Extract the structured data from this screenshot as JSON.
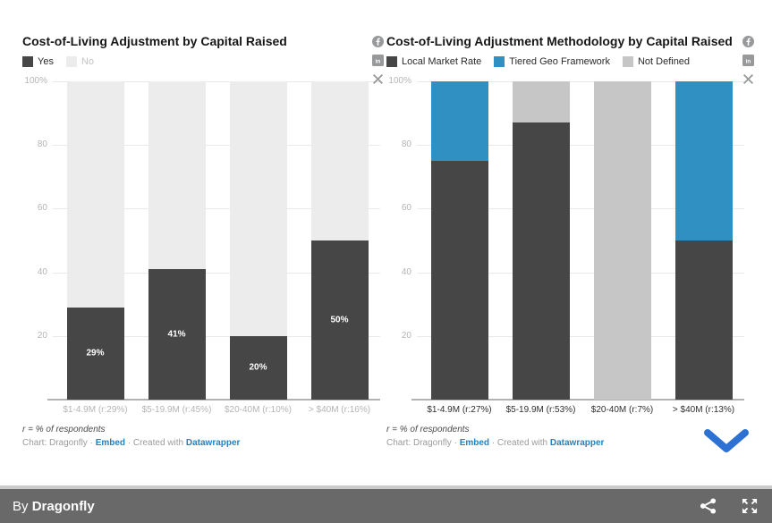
{
  "colors": {
    "bar_dark": "#464646",
    "no_fill": "#ececec",
    "accent_blue": "#3190c2",
    "not_defined_gray": "#c6c6c6",
    "link_blue": "#1f83c4",
    "chevron_blue": "#2d72d3",
    "footer_bg": "#696969",
    "footer_border": "#cbcbcb",
    "icon_gray": "#97999b"
  },
  "icons": {
    "social": [
      "facebook-icon",
      "linkedin-icon",
      "x-icon"
    ],
    "footer": [
      "share-icon",
      "fullscreen-icon"
    ],
    "scroll": "chevron-down-icon"
  },
  "footer": {
    "byline_prefix": "By ",
    "byline_name": "Dragonfly"
  },
  "chart_data": [
    {
      "type": "bar",
      "stacked": true,
      "title": "Cost-of-Living Adjustment by Capital Raised",
      "categories": [
        "$1-4.9M (r:29%)",
        "$5-19.9M (r:45%)",
        "$20-40M (r:10%)",
        "> $40M (r:16%)"
      ],
      "series": [
        {
          "name": "Yes",
          "color": "#464646",
          "legend_text_color": "#2b2b2b",
          "values": [
            29,
            41,
            20,
            50
          ],
          "labels": [
            "29%",
            "41%",
            "20%",
            "50%"
          ]
        },
        {
          "name": "No",
          "color": "#ececec",
          "legend_text_color": "#c4c4c4",
          "values": [
            71,
            59,
            80,
            50
          ],
          "labels": null
        }
      ],
      "ylim": [
        0,
        100
      ],
      "yticks": [
        "100%",
        "80",
        "60",
        "40",
        "20"
      ],
      "grid": true,
      "legend_position": "top",
      "category_label_color": "#b4b4b4",
      "footnote": "r = % of respondents",
      "attribution": {
        "prefix": "Chart: Dragonfly ·",
        "embed_label": "Embed",
        "created": "· Created with",
        "tool_label": "Datawrapper"
      }
    },
    {
      "type": "bar",
      "stacked": true,
      "title": "Cost-of-Living Adjustment Methodology by Capital Raised",
      "categories": [
        "$1-4.9M (r:27%)",
        "$5-19.9M (r:53%)",
        "$20-40M (r:7%)",
        "> $40M (r:13%)"
      ],
      "series": [
        {
          "name": "Local Market Rate",
          "color": "#464646",
          "legend_text_color": "#2b2b2b",
          "values": [
            75,
            87,
            0,
            50
          ],
          "labels": null
        },
        {
          "name": "Tiered Geo Framework",
          "color": "#3190c2",
          "legend_text_color": "#2b2b2b",
          "values": [
            25,
            0,
            0,
            50
          ],
          "labels": null
        },
        {
          "name": "Not Defined",
          "color": "#c6c6c6",
          "legend_text_color": "#2b2b2b",
          "values": [
            0,
            13,
            100,
            0
          ],
          "labels": null
        }
      ],
      "ylim": [
        0,
        100
      ],
      "yticks": [
        "100%",
        "80",
        "60",
        "40",
        "20"
      ],
      "grid": true,
      "legend_position": "top",
      "category_label_color": "#2f2f2f",
      "footnote": "r = % of respondents",
      "attribution": {
        "prefix": "Chart: Dragonfly ·",
        "embed_label": "Embed",
        "created": "· Created with",
        "tool_label": "Datawrapper"
      }
    }
  ]
}
